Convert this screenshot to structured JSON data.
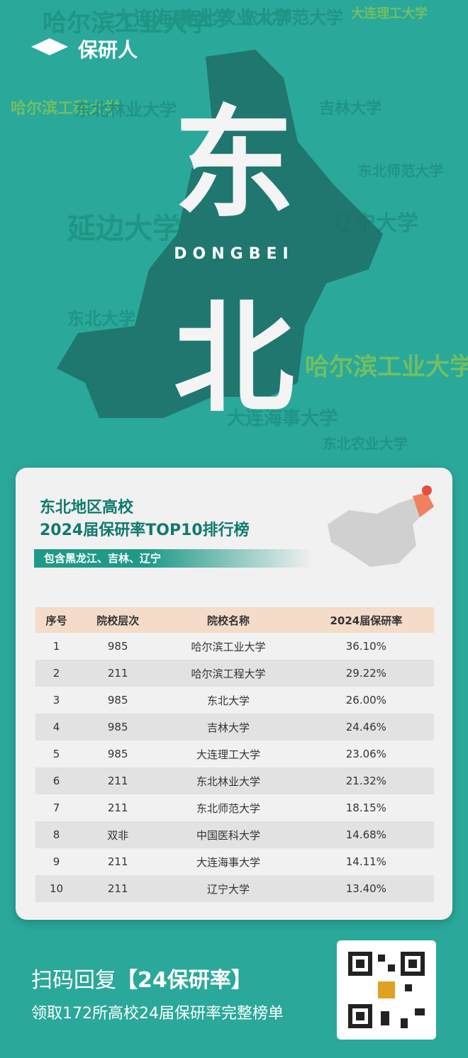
{
  "logo": "保研人",
  "background_words": [
    "哈尔滨工业大学",
    "大连海事大学",
    "东北农业大学",
    "东北师范大学",
    "大连理工大学",
    "哈尔滨工程大学",
    "东北林业大学",
    "吉林大学",
    "延边大学",
    "辽宁大学",
    "东北大学"
  ],
  "hero": {
    "top_char": "东",
    "pinyin": "DONGBEI",
    "bottom_char": "北"
  },
  "card": {
    "title_line1": "东北地区高校",
    "title_line2": "2024届保研率TOP10排行榜",
    "subtitle": "包含黑龙江、吉林、辽宁"
  },
  "table": {
    "header": [
      "序号",
      "院校层次",
      "院校名称",
      "2024届保研率"
    ],
    "rows": [
      [
        "1",
        "985",
        "哈尔滨工业大学",
        "36.10%"
      ],
      [
        "2",
        "211",
        "哈尔滨工程大学",
        "29.22%"
      ],
      [
        "3",
        "985",
        "东北大学",
        "26.00%"
      ],
      [
        "4",
        "985",
        "吉林大学",
        "24.46%"
      ],
      [
        "5",
        "985",
        "大连理工大学",
        "23.06%"
      ],
      [
        "6",
        "211",
        "东北林业大学",
        "21.32%"
      ],
      [
        "7",
        "211",
        "东北师范大学",
        "18.15%"
      ],
      [
        "8",
        "双非",
        "中国医科大学",
        "14.68%"
      ],
      [
        "9",
        "211",
        "大连海事大学",
        "14.11%"
      ],
      [
        "10",
        "211",
        "辽宁大学",
        "13.40%"
      ]
    ]
  },
  "footer": {
    "line1": "扫码回复",
    "keyword": "【24保研率】",
    "line2": "领取172所高校24届保研率完整榜单"
  }
}
